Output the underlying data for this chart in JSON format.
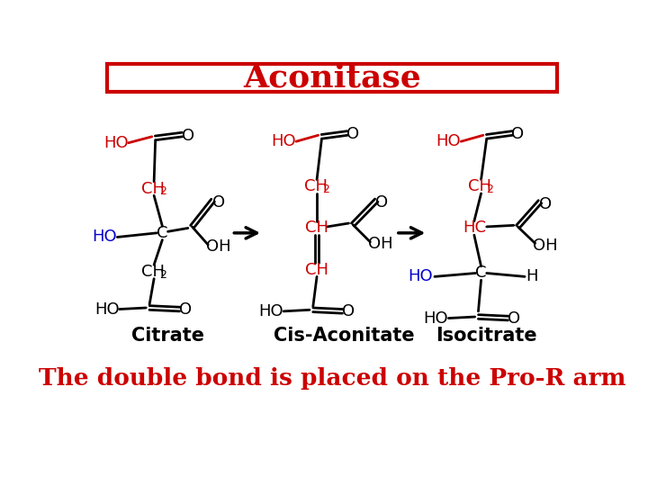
{
  "title": "Aconitase",
  "title_color": "#CC0000",
  "title_fontsize": 26,
  "subtitle": "The double bond is placed on the Pro-R arm",
  "subtitle_color": "#CC0000",
  "subtitle_fontsize": 19,
  "label_citrate": "Citrate",
  "label_cis": "Cis-Aconitate",
  "label_iso": "Isocitrate",
  "label_fontsize": 15,
  "red": "#CC0000",
  "blue": "#0000CC",
  "black": "#000000",
  "background": "#FFFFFF",
  "lw": 2.0
}
